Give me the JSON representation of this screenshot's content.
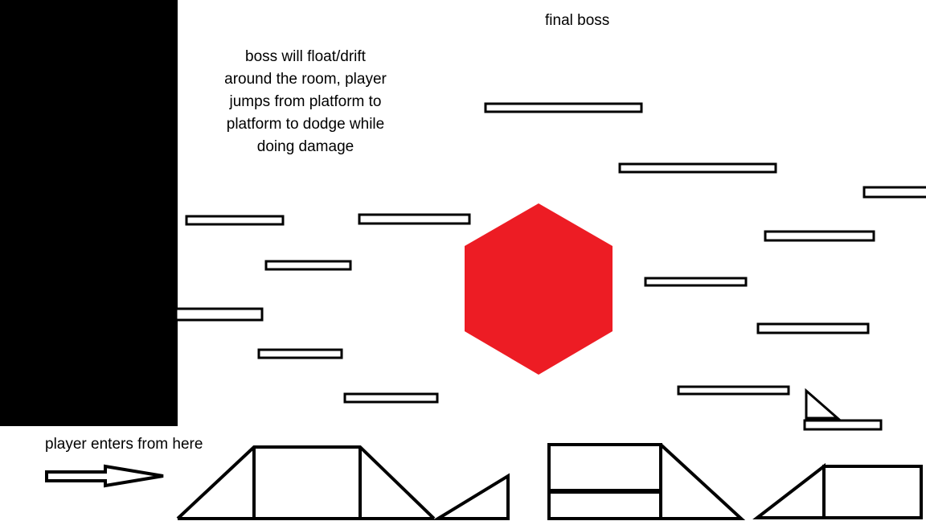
{
  "title": "final boss",
  "description": [
    "boss will float/drift",
    "around the room, player",
    "jumps from platform to",
    "platform to dodge while",
    "doing damage"
  ],
  "entry_label": "player enters from here",
  "colors": {
    "boss": "#ed1c24",
    "wall": "#000000",
    "outline": "#000000",
    "background": "#ffffff"
  },
  "icons": {
    "boss": "red-hexagon",
    "entry": "right-arrow"
  }
}
